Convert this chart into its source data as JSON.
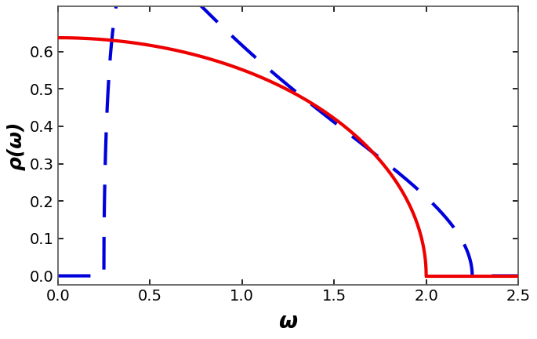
{
  "red_omega_max": 2.0,
  "blue_omega_min": 0.25,
  "blue_omega_max": 2.25,
  "xlim": [
    0.0,
    2.5
  ],
  "ylim": [
    -0.025,
    0.72
  ],
  "xticks": [
    0.0,
    0.5,
    1.0,
    1.5,
    2.0,
    2.5
  ],
  "yticks": [
    0.0,
    0.1,
    0.2,
    0.3,
    0.4,
    0.5,
    0.6
  ],
  "xlabel": "ω",
  "ylabel": "ρ(ω)",
  "red_color": "#ee0000",
  "blue_color": "#0000dd",
  "linewidth": 3.0,
  "background_color": "#ffffff",
  "border_color": "#000000",
  "tick_labelsize": 14,
  "xlabel_fontsize": 20,
  "ylabel_fontsize": 18
}
